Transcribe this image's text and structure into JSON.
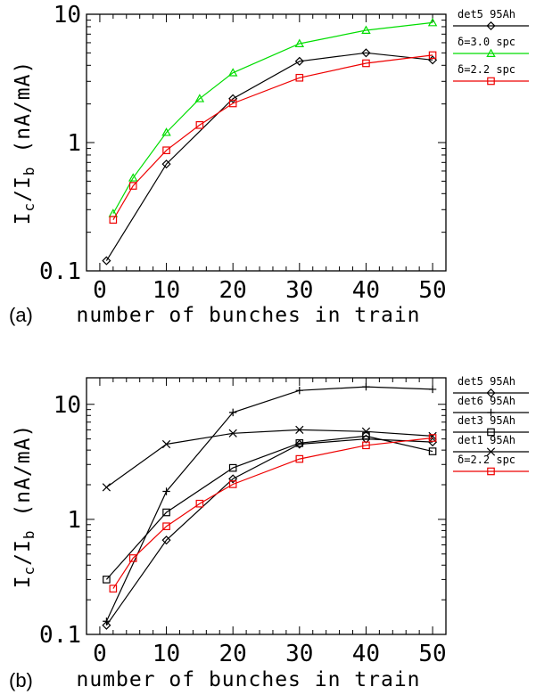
{
  "chart_data": [
    {
      "type": "line",
      "panel_label": "(a)",
      "xlabel": "number of bunches in train",
      "ylabel": "I_c/I_b  (nA/mA)",
      "ylabel_main": "I",
      "ylabel_sub1": "c",
      "ylabel_slash": "/I",
      "ylabel_sub2": "b",
      "ylabel_unit": "(nA/mA)",
      "xlim": [
        -2,
        52
      ],
      "ylim": [
        0.1,
        10
      ],
      "y_scale": "log",
      "x_ticks": [
        "0",
        "10",
        "20",
        "30",
        "40",
        "50"
      ],
      "y_ticks": [
        "0.1",
        "1",
        "10"
      ],
      "legend_position": "right-outside",
      "series": [
        {
          "name": "det5  95Ah",
          "color": "#000000",
          "marker": "diamond",
          "x": [
            1,
            10,
            20,
            30,
            40,
            50
          ],
          "y": [
            0.12,
            0.68,
            2.2,
            4.3,
            5.0,
            4.4
          ]
        },
        {
          "name": "δ=3.0  spc",
          "color": "#00dd00",
          "marker": "triangle",
          "x": [
            2,
            5,
            10,
            15,
            20,
            30,
            40,
            50
          ],
          "y": [
            0.28,
            0.53,
            1.2,
            2.2,
            3.5,
            5.9,
            7.5,
            8.6
          ]
        },
        {
          "name": "δ=2.2  spc",
          "color": "#ee0000",
          "marker": "square",
          "x": [
            2,
            5,
            10,
            15,
            20,
            30,
            40,
            50
          ],
          "y": [
            0.25,
            0.46,
            0.87,
            1.37,
            2.02,
            3.2,
            4.15,
            4.8
          ]
        }
      ]
    },
    {
      "type": "line",
      "panel_label": "(b)",
      "xlabel": "number of bunches in train",
      "ylabel": "I_c/I_b  (nA/mA)",
      "ylabel_main": "I",
      "ylabel_sub1": "c",
      "ylabel_slash": "/I",
      "ylabel_sub2": "b",
      "ylabel_unit": "(nA/mA)",
      "xlim": [
        -2,
        52
      ],
      "ylim": [
        0.1,
        17
      ],
      "y_scale": "log",
      "x_ticks": [
        "0",
        "10",
        "20",
        "30",
        "40",
        "50"
      ],
      "y_ticks": [
        "0.1",
        "1",
        "10"
      ],
      "legend_position": "right-outside",
      "series": [
        {
          "name": "det5  95Ah",
          "color": "#000000",
          "marker": "diamond",
          "x": [
            1,
            10,
            20,
            30,
            40,
            50
          ],
          "y": [
            0.12,
            0.66,
            2.25,
            4.5,
            5.0,
            4.7
          ]
        },
        {
          "name": "det6  95Ah",
          "color": "#000000",
          "marker": "plus",
          "x": [
            1,
            10,
            20,
            30,
            40,
            50
          ],
          "y": [
            0.13,
            1.75,
            8.5,
            13.2,
            14.2,
            13.5
          ]
        },
        {
          "name": "det3  95Ah",
          "color": "#000000",
          "marker": "square",
          "x": [
            1,
            10,
            20,
            30,
            40,
            50
          ],
          "y": [
            0.3,
            1.15,
            2.8,
            4.6,
            5.3,
            3.9
          ]
        },
        {
          "name": "det1  95Ah",
          "color": "#000000",
          "marker": "x",
          "x": [
            1,
            10,
            20,
            30,
            40,
            50
          ],
          "y": [
            1.9,
            4.5,
            5.6,
            6.0,
            5.8,
            5.3
          ]
        },
        {
          "name": "δ=2.2  spc",
          "color": "#ee0000",
          "marker": "square",
          "x": [
            2,
            5,
            10,
            15,
            20,
            30,
            40,
            50
          ],
          "y": [
            0.25,
            0.46,
            0.87,
            1.37,
            2.02,
            3.35,
            4.4,
            5.1
          ]
        }
      ]
    }
  ]
}
